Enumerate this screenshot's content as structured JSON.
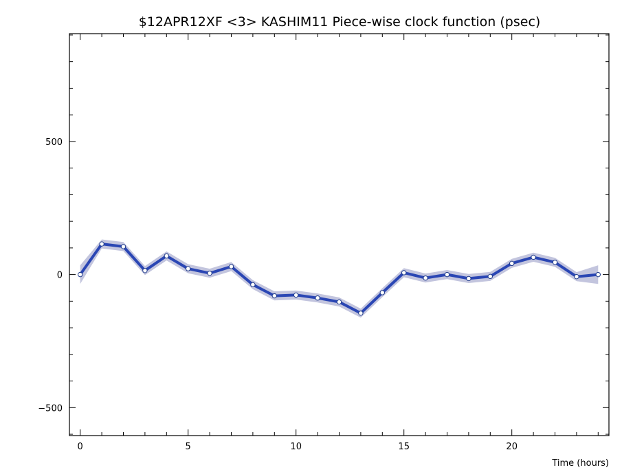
{
  "chart_data": {
    "type": "line",
    "title": "$12APR12XF <3>  KASHIM11  Piece-wise clock function (psec)",
    "xlabel": "Time (hours)",
    "ylabel": "",
    "xlim": [
      -0.5,
      24.5
    ],
    "ylim": [
      -605,
      905
    ],
    "x_ticks": [
      0,
      5,
      10,
      15,
      20
    ],
    "y_ticks": [
      -500,
      0,
      500
    ],
    "grid": false,
    "colors": {
      "line": "#2a46b4",
      "band": "#c3c5de",
      "marker_fill": "#ffffff"
    },
    "x": [
      0,
      1,
      2,
      3,
      4,
      5,
      6,
      7,
      8,
      9,
      10,
      11,
      12,
      13,
      14,
      15,
      16,
      17,
      18,
      19,
      20,
      21,
      22,
      23,
      24
    ],
    "y": [
      0,
      115,
      105,
      15,
      70,
      22,
      5,
      30,
      -38,
      -80,
      -77,
      -88,
      -103,
      -145,
      -68,
      7,
      -13,
      0,
      -15,
      -7,
      42,
      65,
      46,
      -8,
      0
    ],
    "band_halfwidth": [
      35,
      17,
      17,
      17,
      17,
      17,
      17,
      17,
      17,
      17,
      17,
      17,
      17,
      17,
      17,
      17,
      17,
      17,
      17,
      17,
      17,
      17,
      17,
      17,
      35
    ]
  }
}
